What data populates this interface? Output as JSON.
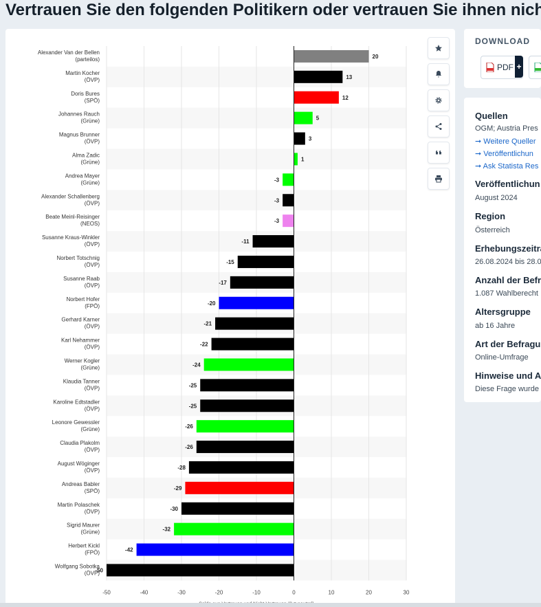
{
  "page_title": "Vertrauen Sie den folgenden Politikern oder vertrauen Sie ihnen nicht?",
  "colors": {
    "partei": "#808080",
    "oevp": "#000000",
    "spoe": "#ff0000",
    "gruene": "#00ff00",
    "neos": "#ee82ee",
    "fpoe": "#0000ff",
    "grid": "#e6e6e6",
    "row_band": "#f7f7f7"
  },
  "chart_data": {
    "type": "bar",
    "orientation": "horizontal",
    "title": "",
    "xlabel": "Saldo aus Vertrauen und Nicht-Vertrauen (0 = neutral)",
    "ylabel": "",
    "xlim": [
      -50,
      30
    ],
    "xticks": [
      "-50",
      "-40",
      "-30",
      "-20",
      "-10",
      "0",
      "10",
      "20",
      "30"
    ],
    "grid": true,
    "categories": [
      {
        "name": "Alexander Van der Bellen",
        "party": "(parteilos)",
        "value": 20,
        "color": "partei",
        "label": "20"
      },
      {
        "name": "Martin Kocher",
        "party": "(ÖVP)",
        "value": 13,
        "color": "oevp",
        "label": "13"
      },
      {
        "name": "Doris Bures",
        "party": "(SPÖ)",
        "value": 12,
        "color": "spoe",
        "label": "12"
      },
      {
        "name": "Johannes Rauch",
        "party": "(Grüne)",
        "value": 5,
        "color": "gruene",
        "label": "5"
      },
      {
        "name": "Magnus Brunner",
        "party": "(ÖVP)",
        "value": 3,
        "color": "oevp",
        "label": "3"
      },
      {
        "name": "Alma Zadic",
        "party": "(Grüne)",
        "value": 1,
        "color": "gruene",
        "label": "1"
      },
      {
        "name": "Andrea Mayer",
        "party": "(Grüne)",
        "value": -3,
        "color": "gruene",
        "label": "-3"
      },
      {
        "name": "Alexander Schallenberg",
        "party": "(ÖVP)",
        "value": -3,
        "color": "oevp",
        "label": "-3"
      },
      {
        "name": "Beate Meinl-Reisinger",
        "party": "(NEOS)",
        "value": -3,
        "color": "neos",
        "label": "-3"
      },
      {
        "name": "Susanne Kraus-Winkler",
        "party": "(ÖVP)",
        "value": -11,
        "color": "oevp",
        "label": "-11"
      },
      {
        "name": "Norbert Totschnig",
        "party": "(ÖVP)",
        "value": -15,
        "color": "oevp",
        "label": "-15"
      },
      {
        "name": "Susanne Raab",
        "party": "(ÖVP)",
        "value": -17,
        "color": "oevp",
        "label": "-17"
      },
      {
        "name": "Norbert Hofer",
        "party": "(FPÖ)",
        "value": -20,
        "color": "fpoe",
        "label": "-20"
      },
      {
        "name": "Gerhard Karner",
        "party": "(ÖVP)",
        "value": -21,
        "color": "oevp",
        "label": "-21"
      },
      {
        "name": "Karl Nehammer",
        "party": "(ÖVP)",
        "value": -22,
        "color": "oevp",
        "label": "-22"
      },
      {
        "name": "Werner Kogler",
        "party": "(Grüne)",
        "value": -24,
        "color": "gruene",
        "label": "-24"
      },
      {
        "name": "Klaudia Tanner",
        "party": "(ÖVP)",
        "value": -25,
        "color": "oevp",
        "label": "-25"
      },
      {
        "name": "Karoline Edtstadler",
        "party": "(ÖVP)",
        "value": -25,
        "color": "oevp",
        "label": "-25"
      },
      {
        "name": "Leonore Gewessler",
        "party": "(Grüne)",
        "value": -26,
        "color": "gruene",
        "label": "-26"
      },
      {
        "name": "Claudia Plakolm",
        "party": "(ÖVP)",
        "value": -26,
        "color": "oevp",
        "label": "-26"
      },
      {
        "name": "August Wöginger",
        "party": "(ÖVP)",
        "value": -28,
        "color": "oevp",
        "label": "-28"
      },
      {
        "name": "Andreas Babler",
        "party": "(SPÖ)",
        "value": -29,
        "color": "spoe",
        "label": "-29"
      },
      {
        "name": "Martin Polaschek",
        "party": "(ÖVP)",
        "value": -30,
        "color": "oevp",
        "label": "-30"
      },
      {
        "name": "Sigrid Maurer",
        "party": "(Grüne)",
        "value": -32,
        "color": "gruene",
        "label": "-32"
      },
      {
        "name": "Herbert Kickl",
        "party": "(FPÖ)",
        "value": -42,
        "color": "fpoe",
        "label": "-42"
      },
      {
        "name": "Wolfgang Sobotka",
        "party": "(ÖVP)",
        "value": -50,
        "color": "oevp",
        "label": "-50"
      }
    ]
  },
  "toolbar": [
    {
      "name": "star-icon",
      "glyph": "★"
    },
    {
      "name": "bell-icon",
      "glyph": "🔔"
    },
    {
      "name": "gear-icon",
      "glyph": "⚙"
    },
    {
      "name": "share-icon",
      "glyph": "share"
    },
    {
      "name": "quote-icon",
      "glyph": "❝"
    },
    {
      "name": "print-icon",
      "glyph": "print"
    }
  ],
  "download": {
    "title": "DOWNLOAD",
    "pdf_label": "PDF",
    "plus": "+"
  },
  "info": {
    "sources_head": "Quellen",
    "sources_val": "OGM; Austria Pres",
    "link_more": "Weitere Queller",
    "link_pub": "Veröffentlichun",
    "link_ask": "Ask Statista Res",
    "pub_head": "Veröffentlichun",
    "pub_val": "August 2024",
    "region_head": "Region",
    "region_val": "Österreich",
    "survey_head": "Erhebungszeitra",
    "survey_val": "26.08.2024 bis 28.0",
    "count_head": "Anzahl der Befr",
    "count_val": "1.087 Wahlberecht",
    "age_head": "Altersgruppe",
    "age_val": "ab 16 Jahre",
    "method_head": "Art der Befragu",
    "method_val": "Online-Umfrage",
    "notes_head": "Hinweise und A",
    "notes_val": "Diese Frage wurde"
  }
}
